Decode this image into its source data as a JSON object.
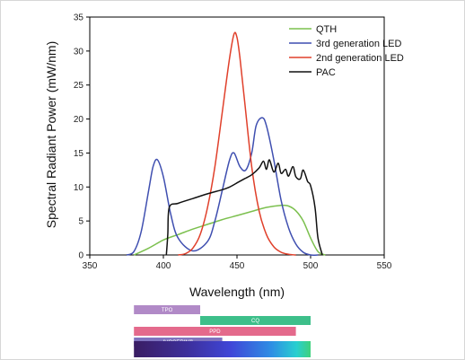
{
  "chart_data": {
    "type": "line",
    "xlabel": "Wavelength (nm)",
    "ylabel": "Spectral Radiant Power (mW/nm)",
    "xlim": [
      350,
      550
    ],
    "ylim": [
      0,
      35
    ],
    "xticks": [
      350,
      400,
      450,
      500,
      550
    ],
    "yticks": [
      0,
      5,
      10,
      15,
      20,
      25,
      30,
      35
    ],
    "legend_position": "top-right",
    "series": [
      {
        "name": "QTH",
        "color": "#7cc04f",
        "x": [
          380,
          390,
          400,
          410,
          420,
          430,
          440,
          450,
          460,
          470,
          480,
          485,
          490,
          495,
          500,
          505,
          510
        ],
        "y": [
          0,
          1.0,
          2.2,
          3.0,
          3.8,
          4.5,
          5.2,
          5.8,
          6.4,
          7.0,
          7.3,
          7.2,
          6.5,
          5.0,
          2.5,
          0.5,
          0
        ]
      },
      {
        "name": "3rd generation LED",
        "color": "#3f4fb0",
        "x": [
          375,
          380,
          385,
          390,
          393,
          396,
          400,
          405,
          410,
          420,
          430,
          435,
          440,
          445,
          448,
          452,
          456,
          460,
          463,
          467,
          470,
          475,
          480,
          485,
          490,
          495,
          500,
          505
        ],
        "y": [
          0,
          0.5,
          3.5,
          9.5,
          13,
          14,
          11.5,
          6,
          2.5,
          0.6,
          2,
          5,
          9.5,
          14,
          15,
          13,
          12.5,
          15,
          19,
          20.2,
          19,
          14,
          8,
          4,
          1.6,
          0.4,
          0,
          0
        ]
      },
      {
        "name": "2nd generation LED",
        "color": "#e0402b",
        "x": [
          410,
          415,
          420,
          425,
          430,
          435,
          440,
          445,
          448,
          450,
          452,
          455,
          460,
          465,
          470,
          475,
          480,
          485,
          490
        ],
        "y": [
          0,
          0.2,
          1,
          3,
          7,
          13,
          21,
          29,
          32.5,
          32,
          29,
          23,
          13,
          6.5,
          3,
          1.2,
          0.4,
          0.1,
          0
        ]
      },
      {
        "name": "PAC",
        "color": "#111111",
        "x": [
          402,
          403,
          404,
          410,
          420,
          430,
          440,
          445,
          450,
          455,
          460,
          465,
          468,
          470,
          472,
          475,
          478,
          480,
          483,
          485,
          488,
          490,
          493,
          495,
          498,
          500,
          503,
          505,
          508
        ],
        "y": [
          0,
          3,
          7,
          7.6,
          8.3,
          9,
          9.6,
          10,
          10.6,
          11.2,
          11.8,
          12.8,
          13.8,
          12.6,
          14,
          12.2,
          13.5,
          12,
          12.6,
          11.6,
          13,
          11.5,
          11.2,
          12.5,
          10.8,
          10.2,
          7,
          2.5,
          0
        ]
      }
    ],
    "absorption_bands": [
      {
        "label": "TPO",
        "start": 380,
        "end": 425,
        "color": "#b18ac7"
      },
      {
        "label": "CQ",
        "start": 425,
        "end": 500,
        "color": "#3dbf8a"
      },
      {
        "label": "PPD",
        "start": 380,
        "end": 490,
        "color": "#e46a8c"
      },
      {
        "label": "IVOCERIN®",
        "start": 380,
        "end": 440,
        "color": "#7f73bf"
      }
    ],
    "spectrum_bar": {
      "start": 380,
      "end": 500
    }
  }
}
